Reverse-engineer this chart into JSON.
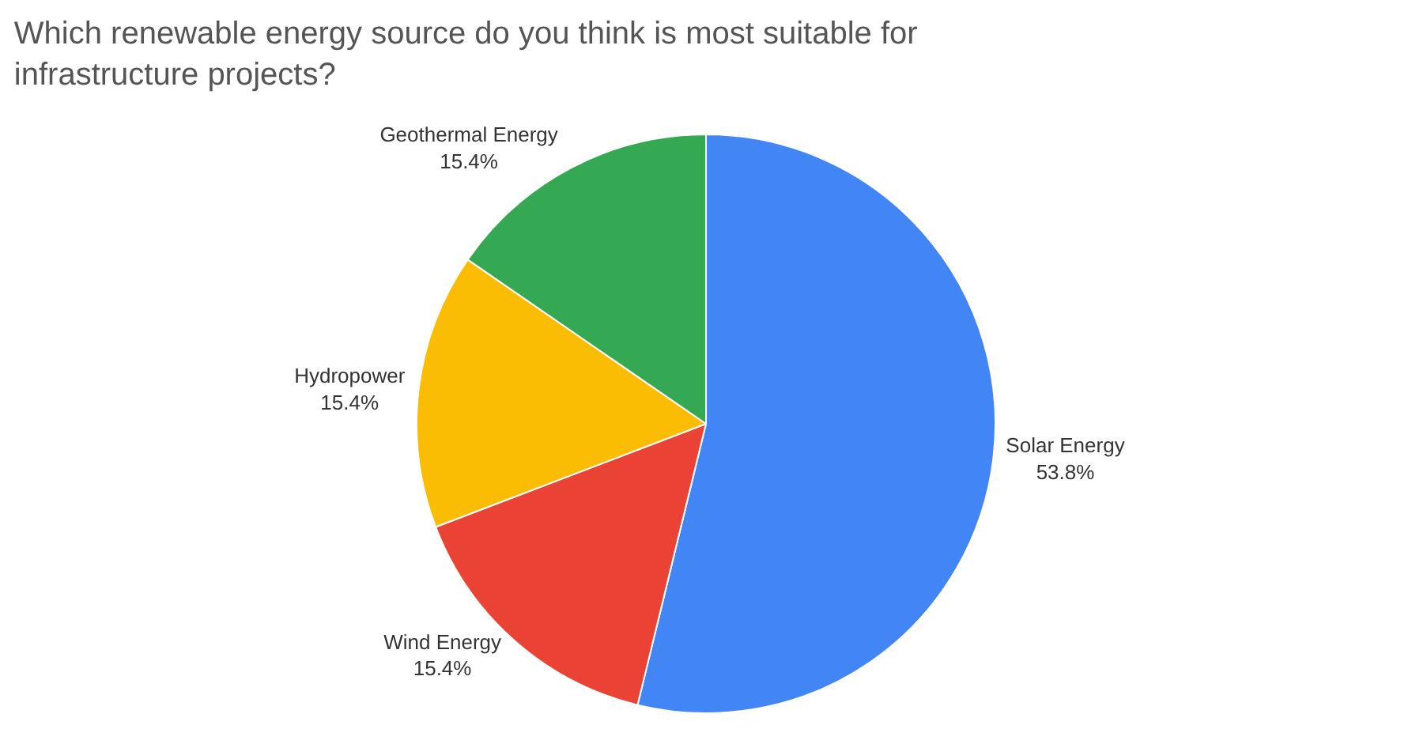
{
  "chart_data": {
    "type": "pie",
    "title": "Which renewable energy source do you think is most suitable for infrastructure projects?",
    "categories": [
      "Solar Energy",
      "Wind Energy",
      "Hydropower",
      "Geothermal Energy"
    ],
    "values": [
      53.8,
      15.4,
      15.4,
      15.4
    ],
    "colors": [
      "#4285f4",
      "#ea4335",
      "#fbbc04",
      "#34a853"
    ],
    "value_labels": [
      "53.8%",
      "15.4%",
      "15.4%",
      "15.4%"
    ],
    "legend": false
  }
}
